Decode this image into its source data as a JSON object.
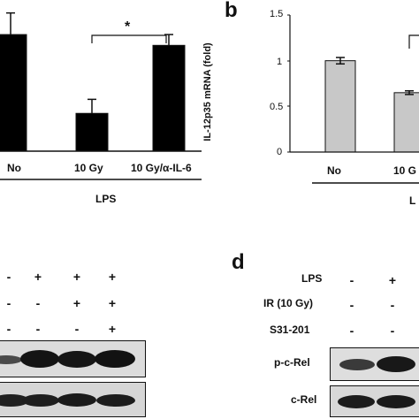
{
  "panel_a": {
    "x_labels": [
      "No",
      "10 Gy",
      "10 Gy/α-IL-6"
    ],
    "group_label": "LPS",
    "significance": "*"
  },
  "panel_b": {
    "letter": "b",
    "ylabel": "IL-12p35 mRNA (fold)",
    "x_labels": [
      "No",
      "10 G"
    ],
    "group_label": "L",
    "yticks": [
      "1.5",
      "1",
      "0.5",
      "0"
    ]
  },
  "panel_c": {
    "treatment_rows": [
      [
        "-",
        "+",
        "+",
        "+"
      ],
      [
        "-",
        "-",
        "+",
        "+"
      ],
      [
        "-",
        "-",
        "-",
        "+"
      ]
    ]
  },
  "panel_d": {
    "letter": "d",
    "row_labels": [
      "LPS",
      "IR (10 Gy)",
      "S31-201"
    ],
    "treatment_rows": [
      [
        "-",
        "+"
      ],
      [
        "-",
        "-"
      ],
      [
        "-",
        "-"
      ]
    ],
    "blot_labels": [
      "p-c-Rel",
      "c-Rel"
    ]
  },
  "chart_data": [
    {
      "type": "bar",
      "categories": [
        "No",
        "10 Gy",
        "10 Gy/α-IL-6"
      ],
      "values": [
        1.08,
        0.35,
        0.98
      ],
      "errors": [
        0.2,
        0.13,
        0.1
      ],
      "ylim": [
        0,
        1.4
      ],
      "colors": [
        "#000000"
      ]
    },
    {
      "type": "bar",
      "categories": [
        "No",
        "10 G"
      ],
      "values": [
        1.0,
        0.65
      ],
      "errors": [
        0.035,
        0.02
      ],
      "ylim": [
        0,
        1.5
      ],
      "colors": [
        "#c8c8c8"
      ]
    }
  ]
}
